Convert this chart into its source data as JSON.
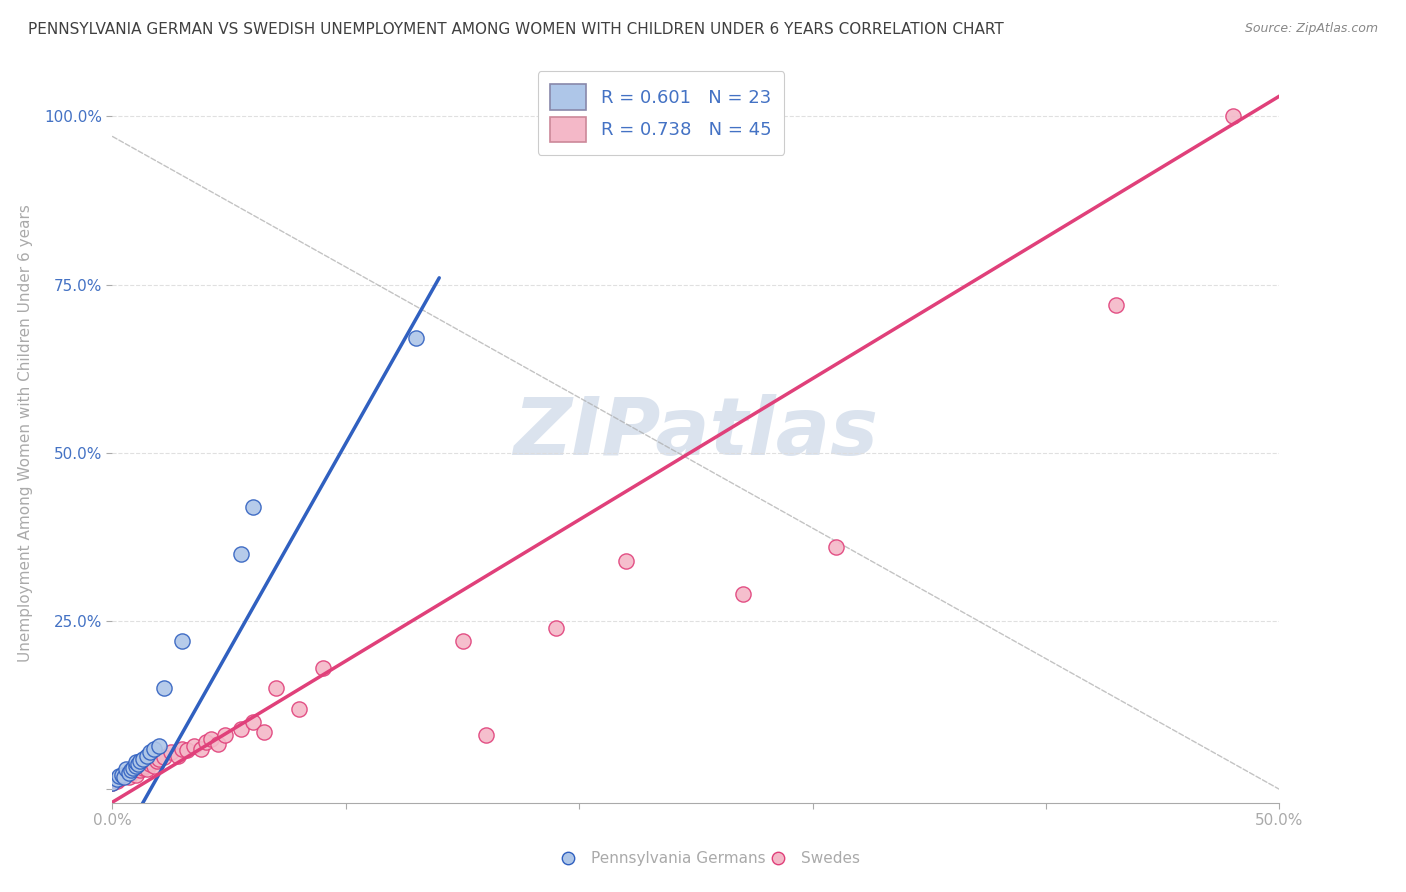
{
  "title": "PENNSYLVANIA GERMAN VS SWEDISH UNEMPLOYMENT AMONG WOMEN WITH CHILDREN UNDER 6 YEARS CORRELATION CHART",
  "source": "Source: ZipAtlas.com",
  "ylabel": "Unemployment Among Women with Children Under 6 years",
  "xlim": [
    0.0,
    0.5
  ],
  "ylim": [
    -0.02,
    1.08
  ],
  "xticks": [
    0.0,
    0.1,
    0.2,
    0.3,
    0.4,
    0.5
  ],
  "xtick_labels": [
    "0.0%",
    "",
    "",
    "",
    "",
    "50.0%"
  ],
  "yticks": [
    0.0,
    0.25,
    0.5,
    0.75,
    1.0
  ],
  "ytick_labels_right": [
    "",
    "25.0%",
    "50.0%",
    "75.0%",
    "100.0%"
  ],
  "legend_item1": "R = 0.601   N = 23",
  "legend_item2": "R = 0.738   N = 45",
  "legend_label1": "Pennsylvania Germans",
  "legend_label2": "Swedes",
  "german_scatter": [
    [
      0.0,
      0.01
    ],
    [
      0.002,
      0.015
    ],
    [
      0.003,
      0.02
    ],
    [
      0.004,
      0.022
    ],
    [
      0.005,
      0.018
    ],
    [
      0.006,
      0.03
    ],
    [
      0.007,
      0.025
    ],
    [
      0.008,
      0.028
    ],
    [
      0.009,
      0.032
    ],
    [
      0.01,
      0.035
    ],
    [
      0.01,
      0.04
    ],
    [
      0.011,
      0.038
    ],
    [
      0.012,
      0.042
    ],
    [
      0.013,
      0.045
    ],
    [
      0.015,
      0.05
    ],
    [
      0.016,
      0.055
    ],
    [
      0.018,
      0.06
    ],
    [
      0.02,
      0.065
    ],
    [
      0.022,
      0.15
    ],
    [
      0.03,
      0.22
    ],
    [
      0.055,
      0.35
    ],
    [
      0.06,
      0.42
    ],
    [
      0.13,
      0.67
    ]
  ],
  "swedish_scatter": [
    [
      0.0,
      0.01
    ],
    [
      0.002,
      0.012
    ],
    [
      0.003,
      0.015
    ],
    [
      0.004,
      0.018
    ],
    [
      0.005,
      0.02
    ],
    [
      0.006,
      0.022
    ],
    [
      0.007,
      0.018
    ],
    [
      0.008,
      0.025
    ],
    [
      0.009,
      0.028
    ],
    [
      0.01,
      0.022
    ],
    [
      0.011,
      0.03
    ],
    [
      0.012,
      0.028
    ],
    [
      0.013,
      0.032
    ],
    [
      0.014,
      0.035
    ],
    [
      0.015,
      0.03
    ],
    [
      0.016,
      0.038
    ],
    [
      0.017,
      0.04
    ],
    [
      0.018,
      0.035
    ],
    [
      0.019,
      0.042
    ],
    [
      0.02,
      0.045
    ],
    [
      0.022,
      0.048
    ],
    [
      0.025,
      0.055
    ],
    [
      0.028,
      0.05
    ],
    [
      0.03,
      0.06
    ],
    [
      0.032,
      0.058
    ],
    [
      0.035,
      0.065
    ],
    [
      0.038,
      0.06
    ],
    [
      0.04,
      0.07
    ],
    [
      0.042,
      0.075
    ],
    [
      0.045,
      0.068
    ],
    [
      0.048,
      0.08
    ],
    [
      0.055,
      0.09
    ],
    [
      0.06,
      0.1
    ],
    [
      0.065,
      0.085
    ],
    [
      0.07,
      0.15
    ],
    [
      0.08,
      0.12
    ],
    [
      0.09,
      0.18
    ],
    [
      0.15,
      0.22
    ],
    [
      0.16,
      0.08
    ],
    [
      0.19,
      0.24
    ],
    [
      0.22,
      0.34
    ],
    [
      0.27,
      0.29
    ],
    [
      0.31,
      0.36
    ],
    [
      0.43,
      0.72
    ],
    [
      0.48,
      1.0
    ]
  ],
  "german_color": "#aec6e8",
  "german_line_color": "#3060c0",
  "swedish_color": "#f4b8c8",
  "swedish_line_color": "#e0407a",
  "title_color": "#404040",
  "axis_color": "#aaaaaa",
  "tick_label_color": "#4472c4",
  "grid_color": "#dddddd",
  "background_color": "#ffffff",
  "watermark_color": "#ccd8e8",
  "title_fontsize": 11,
  "axis_label_fontsize": 11,
  "tick_fontsize": 11,
  "legend_fontsize": 13,
  "german_line_xstart": 0.0,
  "german_line_ystart": -0.1,
  "german_line_xend": 0.14,
  "german_line_yend": 0.76,
  "swedish_line_xstart": -0.01,
  "swedish_line_ystart": -0.04,
  "swedish_line_xend": 0.5,
  "swedish_line_yend": 1.03
}
